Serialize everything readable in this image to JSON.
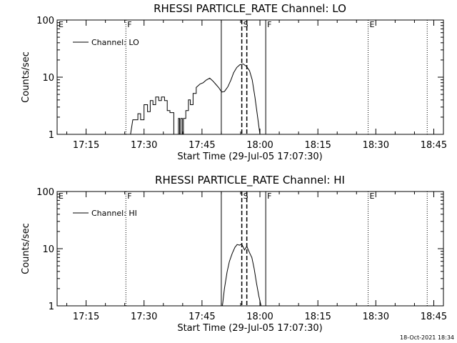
{
  "timestamp": "18-Oct-2021 18:34",
  "chart_data": [
    {
      "type": "line",
      "title": "RHESSI PARTICLE_RATE Channel: LO",
      "xlabel": "Start Time (29-Jul-05 17:07:30)",
      "ylabel": "Counts/sec",
      "yscale": "log",
      "ylim": [
        1,
        100
      ],
      "xlim_minutes": [
        0,
        100
      ],
      "x_ticks": [
        "17:15",
        "17:30",
        "17:45",
        "18:00",
        "18:15",
        "18:30",
        "18:45"
      ],
      "y_ticks": [
        "1",
        "10",
        "100"
      ],
      "legend": [
        "Channel: LO"
      ],
      "markers": [
        {
          "label": "E",
          "x": 0,
          "style": "none"
        },
        {
          "label": "F",
          "x": 17.8,
          "style": "dotted"
        },
        {
          "label": "",
          "x": 42.5,
          "style": "solid"
        },
        {
          "label": "S",
          "x": 47.8,
          "style": "dashed"
        },
        {
          "label": "",
          "x": 49.1,
          "style": "dashed"
        },
        {
          "label": "F",
          "x": 54.0,
          "style": "solid"
        },
        {
          "label": "E",
          "x": 80.5,
          "style": "dotted"
        },
        {
          "label": "",
          "x": 95.8,
          "style": "dotted"
        }
      ],
      "series": [
        {
          "x": [
            19.0,
            19.6,
            19.6,
            20.9,
            20.9,
            21.6,
            21.6,
            22.5,
            22.5,
            23.4,
            23.4,
            24.1,
            24.1,
            24.8,
            24.8,
            25.5,
            25.5,
            26.3,
            26.3,
            27.0,
            27.0,
            27.8,
            27.8,
            28.5,
            28.5,
            29.2,
            29.2,
            30.2,
            30.2,
            31.1,
            31.4,
            31.4,
            31.7,
            31.7,
            32.0,
            32.0,
            32.4,
            32.4,
            32.7,
            32.7,
            33.3,
            33.3,
            34.0,
            34.0,
            34.5,
            34.5,
            35.2,
            35.2,
            36.0,
            36.0,
            37.0,
            37.8,
            38.6,
            39.5,
            40.3,
            41.0,
            41.8,
            42.6,
            43.3,
            44.2,
            45.0,
            45.7,
            46.5,
            47.3,
            48.2,
            49.0,
            49.8,
            50.5,
            51.2,
            51.9,
            52.5
          ],
          "y": [
            1.0,
            1.8,
            1.8,
            1.8,
            2.3,
            2.3,
            1.8,
            1.8,
            3.3,
            3.3,
            2.5,
            2.5,
            3.9,
            3.9,
            3.3,
            3.3,
            4.5,
            4.5,
            3.9,
            3.9,
            4.5,
            4.5,
            3.9,
            3.9,
            2.6,
            2.6,
            2.4,
            2.4,
            1.0,
            1.0,
            1.0,
            1.9,
            1.9,
            1.0,
            1.0,
            1.9,
            1.9,
            1.0,
            1.0,
            1.9,
            1.9,
            2.6,
            2.6,
            4.0,
            4.0,
            3.3,
            3.3,
            5.2,
            5.2,
            6.6,
            7.6,
            8.0,
            8.9,
            9.6,
            8.6,
            7.6,
            6.6,
            5.5,
            5.6,
            6.8,
            9.0,
            12.0,
            14.8,
            16.5,
            17.0,
            15.5,
            13.0,
            9.0,
            4.5,
            2.0,
            1.0
          ]
        }
      ]
    },
    {
      "type": "line",
      "title": "RHESSI PARTICLE_RATE Channel: HI",
      "xlabel": "Start Time (29-Jul-05 17:07:30)",
      "ylabel": "Counts/sec",
      "yscale": "log",
      "ylim": [
        1,
        100
      ],
      "xlim_minutes": [
        0,
        100
      ],
      "x_ticks": [
        "17:15",
        "17:30",
        "17:45",
        "18:00",
        "18:15",
        "18:30",
        "18:45"
      ],
      "y_ticks": [
        "1",
        "10",
        "100"
      ],
      "legend": [
        "Channel: HI"
      ],
      "markers": [
        {
          "label": "E",
          "x": 0,
          "style": "none"
        },
        {
          "label": "F",
          "x": 17.8,
          "style": "dotted"
        },
        {
          "label": "",
          "x": 42.5,
          "style": "solid"
        },
        {
          "label": "S",
          "x": 47.8,
          "style": "dashed"
        },
        {
          "label": "",
          "x": 49.1,
          "style": "dashed"
        },
        {
          "label": "F",
          "x": 54.0,
          "style": "solid"
        },
        {
          "label": "E",
          "x": 80.5,
          "style": "dotted"
        },
        {
          "label": "",
          "x": 95.8,
          "style": "dotted"
        }
      ],
      "series": [
        {
          "x": [
            42.8,
            43.3,
            44.0,
            44.6,
            45.3,
            46.0,
            46.6,
            47.2,
            47.8,
            48.5,
            49.1,
            49.8,
            50.4,
            51.0,
            51.6,
            52.2,
            52.8
          ],
          "y": [
            1.0,
            2.0,
            3.9,
            6.0,
            8.2,
            10.5,
            11.8,
            11.5,
            12.0,
            9.5,
            11.0,
            8.5,
            7.0,
            4.5,
            2.5,
            1.5,
            1.0
          ]
        }
      ]
    }
  ]
}
